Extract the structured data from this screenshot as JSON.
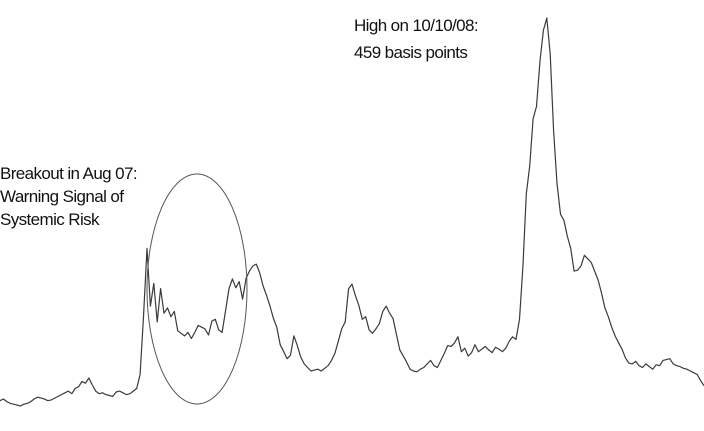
{
  "chart_data": {
    "type": "line",
    "title": "",
    "xlabel": "",
    "ylabel": "",
    "axes_shown": false,
    "grid": false,
    "colors": {
      "line": "#3a3a3a",
      "circle": "#555555",
      "text": "#111111"
    },
    "series": [
      {
        "values": [
          22,
          24,
          21,
          19,
          18,
          17,
          16,
          18,
          19,
          21,
          24,
          26,
          25,
          24,
          22,
          23,
          25,
          27,
          29,
          31,
          33,
          30,
          36,
          38,
          44,
          42,
          48,
          40,
          33,
          30,
          31,
          29,
          28,
          27,
          32,
          33,
          31,
          29,
          30,
          33,
          36,
          52,
          118,
          196,
          130,
          156,
          112,
          150,
          122,
          128,
          118,
          124,
          102,
          99,
          96,
          100,
          93,
          100,
          108,
          106,
          104,
          97,
          113,
          115,
          103,
          100,
          125,
          150,
          161,
          151,
          158,
          138,
          162,
          170,
          176,
          178,
          168,
          153,
          142,
          130,
          116,
          106,
          86,
          78,
          70,
          74,
          96,
          85,
          72,
          64,
          60,
          56,
          57,
          58,
          56,
          59,
          62,
          68,
          76,
          90,
          104,
          112,
          150,
          155,
          142,
          131,
          115,
          118,
          103,
          99,
          104,
          110,
          124,
          130,
          122,
          116,
          98,
          80,
          73,
          66,
          58,
          56,
          55,
          58,
          60,
          64,
          68,
          62,
          60,
          68,
          76,
          85,
          84,
          88,
          95,
          78,
          82,
          73,
          77,
          86,
          78,
          81,
          84,
          80,
          77,
          83,
          81,
          78,
          82,
          90,
          95,
          92,
          115,
          175,
          258,
          290,
          344,
          358,
          410,
          445,
          459,
          418,
          330,
          270,
          235,
          228,
          210,
          196,
          170,
          171,
          176,
          188,
          184,
          180,
          170,
          160,
          145,
          128,
          118,
          106,
          96,
          88,
          81,
          71,
          65,
          64,
          67,
          62,
          60,
          64,
          61,
          58,
          63,
          62,
          68,
          69,
          70,
          64,
          62,
          61,
          59,
          58,
          56,
          54,
          52,
          45,
          39
        ]
      }
    ],
    "annotations": [
      {
        "lines": [
          "High on 10/10/08:",
          "459 basis points"
        ]
      },
      {
        "lines": [
          "Breakout in Aug 07:",
          "Warning Signal of",
          "Systemic Risk"
        ]
      }
    ]
  }
}
